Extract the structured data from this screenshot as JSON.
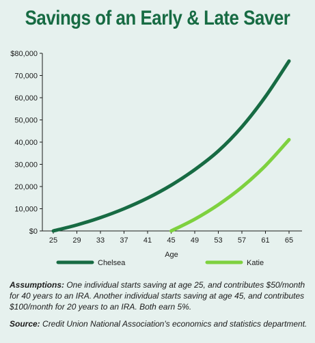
{
  "chart_data": {
    "type": "line",
    "title": "Savings of an Early & Late Saver",
    "xlabel": "Age",
    "ylabel": "",
    "xlim": [
      25,
      65
    ],
    "ylim": [
      0,
      80000
    ],
    "x_ticks": [
      25,
      29,
      33,
      37,
      41,
      45,
      49,
      53,
      57,
      61,
      65
    ],
    "x_tick_labels": [
      "25",
      "29",
      "33",
      "37",
      "41",
      "45",
      "49",
      "53",
      "57",
      "61",
      "65"
    ],
    "y_ticks": [
      0,
      10000,
      20000,
      30000,
      40000,
      50000,
      60000,
      70000,
      80000
    ],
    "y_tick_labels": [
      "$0",
      "10,000",
      "20,000",
      "30,000",
      "40,000",
      "50,000",
      "60,000",
      "70,000",
      "$80,000"
    ],
    "grid": false,
    "legend_position": "bottom",
    "series": [
      {
        "name": "Chelsea",
        "color": "#176b43",
        "x": [
          25,
          29,
          33,
          37,
          41,
          45,
          49,
          53,
          57,
          61,
          65
        ],
        "y": [
          0,
          2700,
          6000,
          10000,
          14800,
          20600,
          27600,
          36000,
          46900,
          60500,
          76500
        ]
      },
      {
        "name": "Katie",
        "color": "#7ed13f",
        "x": [
          45,
          49,
          53,
          57,
          61,
          65
        ],
        "y": [
          0,
          5300,
          11800,
          19700,
          29400,
          41100
        ]
      }
    ]
  },
  "notes": {
    "assumptions_label": "Assumptions:",
    "assumptions_text": " One individual starts saving at age 25, and contributes $50/month for 40 years to an IRA. Another individual starts saving at age 45, and contributes $100/month for 20 years to an IRA. Both earn 5%.",
    "source_label": "Source:",
    "source_text": " Credit Union National Association's economics and statistics department."
  }
}
